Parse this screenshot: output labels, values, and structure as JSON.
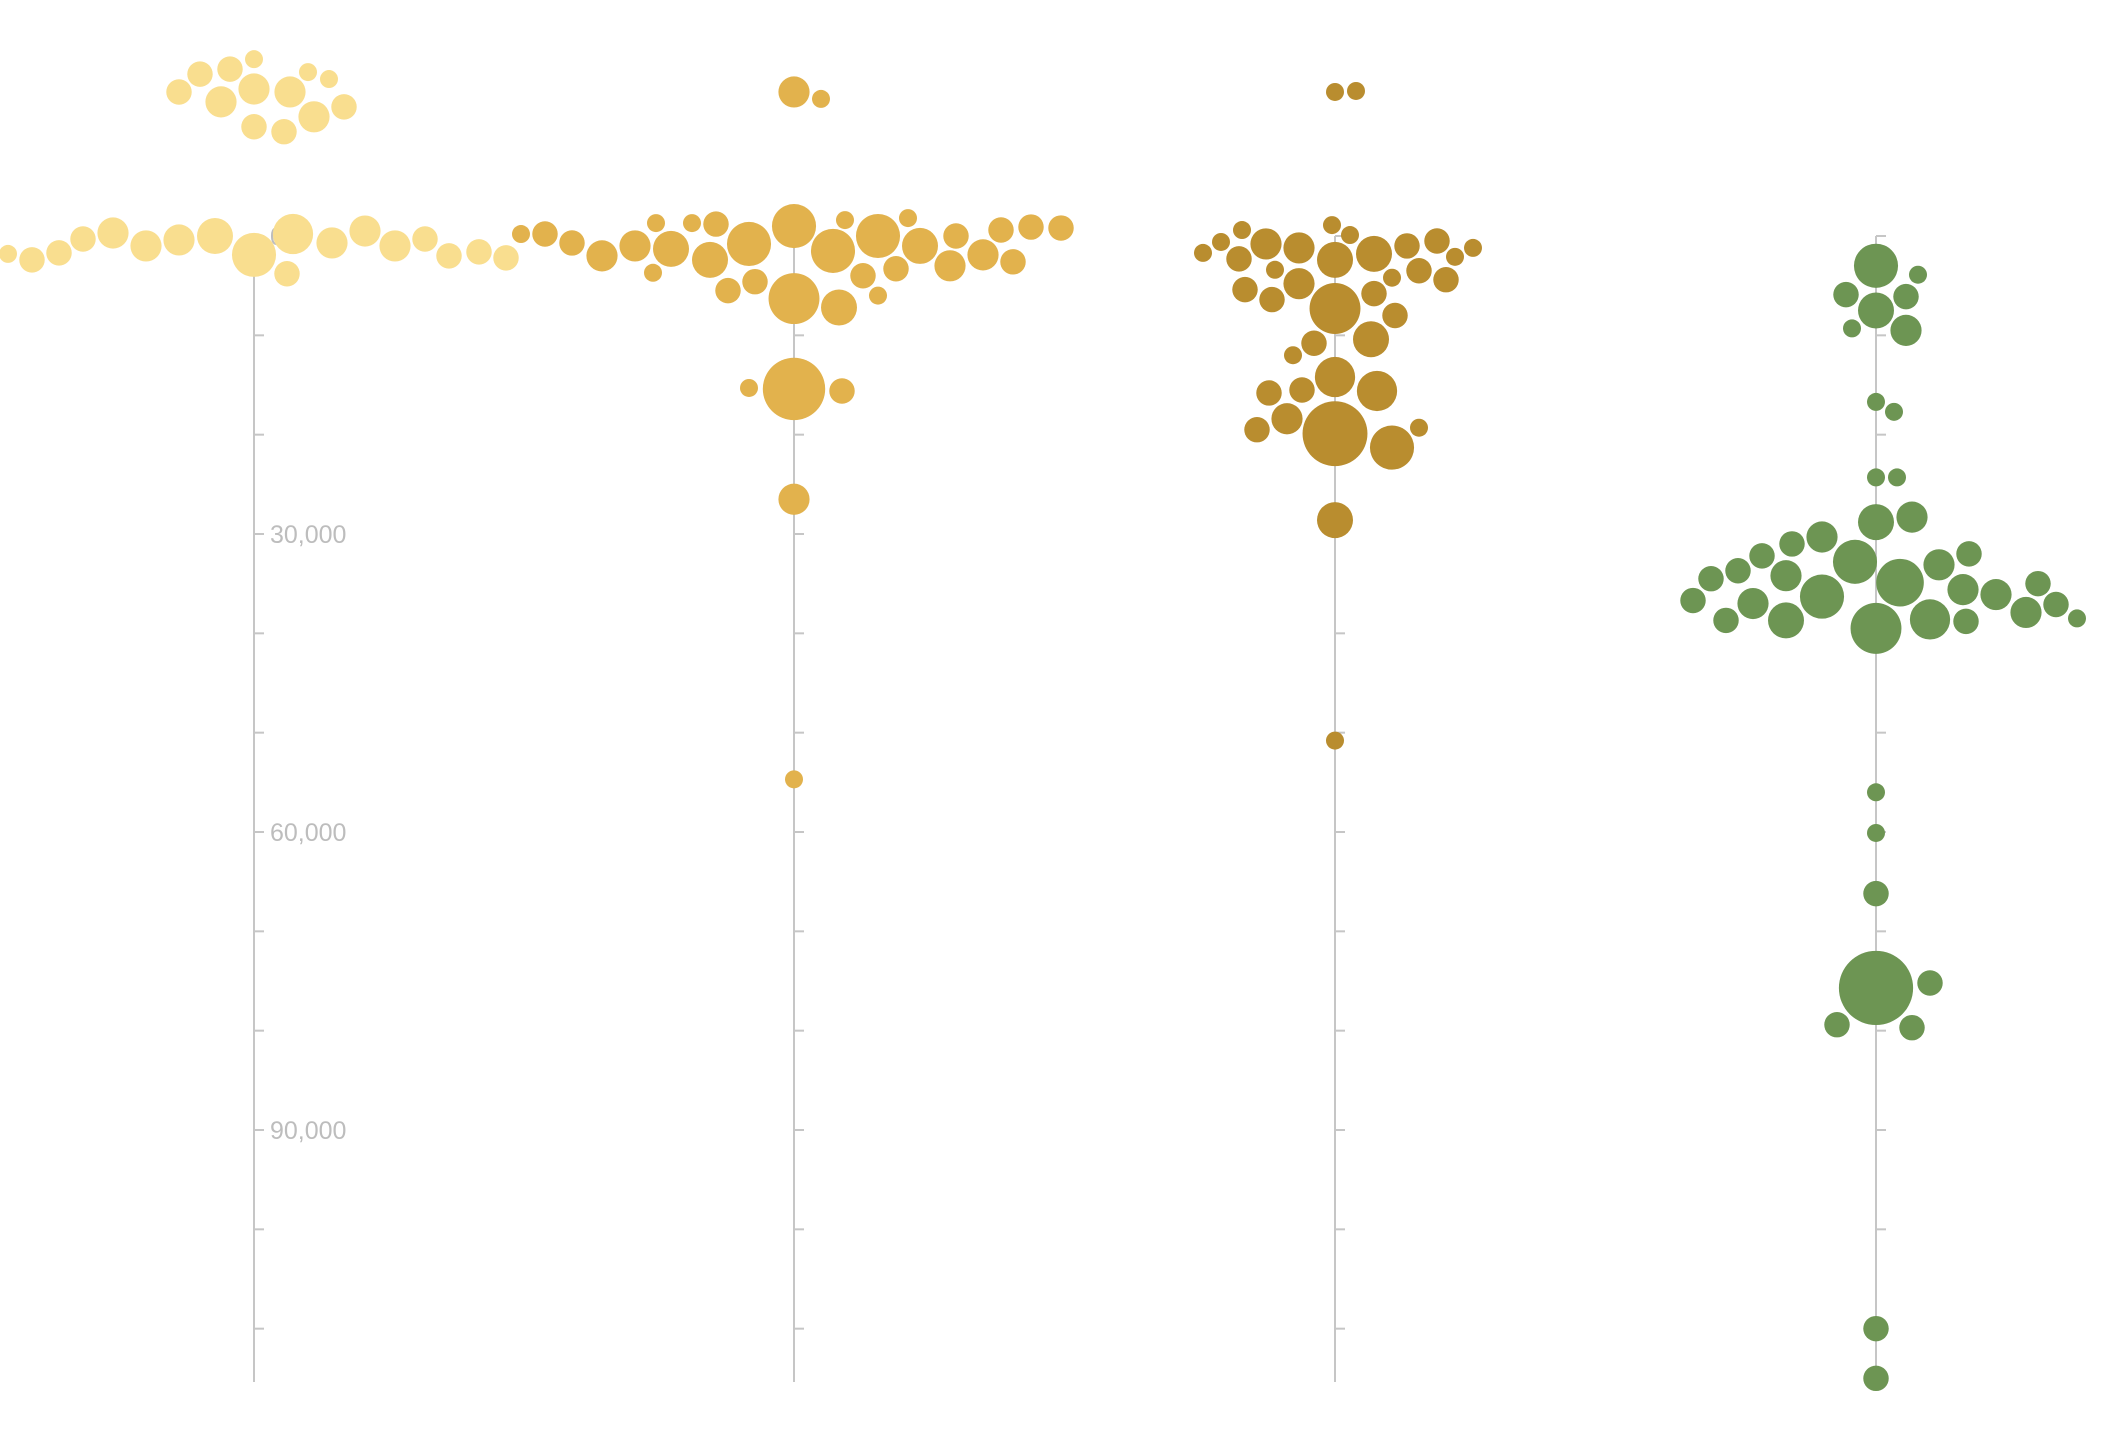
{
  "chart_data": {
    "type": "scatter",
    "title": "",
    "xlabel": "",
    "ylabel": "",
    "y_axis": {
      "min": 0,
      "max": 115000,
      "tick_step": 10000,
      "labels": [
        {
          "value": 0,
          "text": "0"
        },
        {
          "value": 30000,
          "text": "30,000"
        },
        {
          "value": 60000,
          "text": "60,000"
        },
        {
          "value": 90000,
          "text": "90,000"
        }
      ]
    },
    "grid": false,
    "legend": "none",
    "series": [
      {
        "color": "#f9de8f",
        "summary_values": [
          -18000,
          -17000,
          -15500,
          -14500,
          -13500,
          -12000,
          -10500,
          -9000
        ],
        "bubbles": [
          {
            "value": -17800,
            "size": 1
          },
          {
            "value": -16800,
            "size": 2
          },
          {
            "value": -16500,
            "size": 1
          },
          {
            "value": -16300,
            "size": 2
          },
          {
            "value": -15800,
            "size": 1
          },
          {
            "value": -14800,
            "size": 3
          },
          {
            "value": -14500,
            "size": 3
          },
          {
            "value": -14500,
            "size": 2
          },
          {
            "value": -13500,
            "size": 3
          },
          {
            "value": -13000,
            "size": 2
          },
          {
            "value": -12000,
            "size": 3
          },
          {
            "value": -11000,
            "size": 2
          },
          {
            "value": -10500,
            "size": 2
          },
          {
            "value": 300,
            "size": 2
          },
          {
            "value": 300,
            "size": 2
          },
          {
            "value": 400,
            "size": 3
          },
          {
            "value": -200,
            "size": 5
          },
          {
            "value": 700,
            "size": 3
          },
          {
            "value": 0,
            "size": 4
          },
          {
            "value": 2000,
            "size": 2
          },
          {
            "value": 1800,
            "size": 1
          },
          {
            "value": 1700,
            "size": 2
          },
          {
            "value": 2400,
            "size": 2
          },
          {
            "value": 1900,
            "size": 6
          },
          {
            "value": 1000,
            "size": 3
          },
          {
            "value": 1600,
            "size": 2
          },
          {
            "value": -500,
            "size": 3
          },
          {
            "value": 3800,
            "size": 2
          },
          {
            "value": 2200,
            "size": 2
          },
          {
            "value": -300,
            "size": 3
          },
          {
            "value": 1000,
            "size": 3
          }
        ]
      },
      {
        "color": "#e2b24d",
        "bubbles": [
          {
            "value": -14500,
            "size": 3
          },
          {
            "value": -13800,
            "size": 1
          },
          {
            "value": 3000,
            "size": 3
          },
          {
            "value": 2600,
            "size": 2
          },
          {
            "value": 1000,
            "size": 3
          },
          {
            "value": 0,
            "size": 2
          },
          {
            "value": 2400,
            "size": 4
          },
          {
            "value": 1900,
            "size": 3
          },
          {
            "value": 700,
            "size": 2
          },
          {
            "value": 1300,
            "size": 4
          },
          {
            "value": -1600,
            "size": 1
          },
          {
            "value": -1000,
            "size": 6
          },
          {
            "value": -200,
            "size": 1
          },
          {
            "value": 2000,
            "size": 3
          },
          {
            "value": 4000,
            "size": 2
          },
          {
            "value": -1200,
            "size": 2
          },
          {
            "value": -600,
            "size": 2
          },
          {
            "value": -1300,
            "size": 1
          },
          {
            "value": -900,
            "size": 2
          },
          {
            "value": -1800,
            "size": 1
          },
          {
            "value": -1300,
            "size": 1
          },
          {
            "value": -200,
            "size": 2
          },
          {
            "value": 1500,
            "size": 6
          },
          {
            "value": -800,
            "size": 2
          },
          {
            "value": 4600,
            "size": 2
          },
          {
            "value": 3300,
            "size": 2
          },
          {
            "value": 800,
            "size": 6
          },
          {
            "value": 1000,
            "size": 4
          },
          {
            "value": 0,
            "size": 6
          },
          {
            "value": 6000,
            "size": 1
          },
          {
            "value": 3700,
            "size": 1
          },
          {
            "value": 5500,
            "size": 2
          },
          {
            "value": 6300,
            "size": 8
          },
          {
            "value": 7200,
            "size": 4
          },
          {
            "value": 15400,
            "size": 12
          },
          {
            "value": 15300,
            "size": 1
          },
          {
            "value": 15600,
            "size": 2
          },
          {
            "value": 26500,
            "size": 3
          },
          {
            "value": 54700,
            "size": 1
          }
        ]
      },
      {
        "color": "#b98d2f",
        "bubbles": [
          {
            "value": -14500,
            "size": 1
          },
          {
            "value": -14600,
            "size": 1
          },
          {
            "value": 1000,
            "size": 2
          },
          {
            "value": 2400,
            "size": 4
          },
          {
            "value": 2100,
            "size": 1
          },
          {
            "value": 600,
            "size": 1
          },
          {
            "value": -100,
            "size": 1
          },
          {
            "value": 1800,
            "size": 4
          },
          {
            "value": 1200,
            "size": 3
          },
          {
            "value": -1100,
            "size": 1
          },
          {
            "value": 800,
            "size": 3
          },
          {
            "value": -600,
            "size": 1
          },
          {
            "value": 1700,
            "size": 1
          },
          {
            "value": 500,
            "size": 2
          },
          {
            "value": 3500,
            "size": 2
          },
          {
            "value": 2300,
            "size": 2
          },
          {
            "value": 1200,
            "size": 1
          },
          {
            "value": 3400,
            "size": 1
          },
          {
            "value": 4800,
            "size": 3
          },
          {
            "value": 5800,
            "size": 2
          },
          {
            "value": 6400,
            "size": 2
          },
          {
            "value": 5400,
            "size": 2
          },
          {
            "value": 4200,
            "size": 1
          },
          {
            "value": 4400,
            "size": 2
          },
          {
            "value": 7300,
            "size": 8
          },
          {
            "value": 8000,
            "size": 2
          },
          {
            "value": 10400,
            "size": 4
          },
          {
            "value": 10800,
            "size": 2
          },
          {
            "value": 12000,
            "size": 1
          },
          {
            "value": 14200,
            "size": 5
          },
          {
            "value": 15500,
            "size": 2
          },
          {
            "value": 15600,
            "size": 5
          },
          {
            "value": 15800,
            "size": 2
          },
          {
            "value": 18400,
            "size": 3
          },
          {
            "value": 19500,
            "size": 2
          },
          {
            "value": 19300,
            "size": 1
          },
          {
            "value": 19900,
            "size": 13
          },
          {
            "value": 21300,
            "size": 6
          },
          {
            "value": 28600,
            "size": 4
          },
          {
            "value": 50800,
            "size": 1
          }
        ]
      },
      {
        "color": "#6d9553",
        "bubbles": [
          {
            "value": 3000,
            "size": 6
          },
          {
            "value": 3900,
            "size": 1
          },
          {
            "value": 6100,
            "size": 2
          },
          {
            "value": 5900,
            "size": 2
          },
          {
            "value": 7500,
            "size": 4
          },
          {
            "value": 9300,
            "size": 1
          },
          {
            "value": 9500,
            "size": 3
          },
          {
            "value": 16700,
            "size": 1
          },
          {
            "value": 17700,
            "size": 1
          },
          {
            "value": 24300,
            "size": 1
          },
          {
            "value": 24300,
            "size": 1
          },
          {
            "value": 28800,
            "size": 4
          },
          {
            "value": 28300,
            "size": 3
          },
          {
            "value": 30300,
            "size": 3
          },
          {
            "value": 31000,
            "size": 2
          },
          {
            "value": 32000,
            "size": 2
          },
          {
            "value": 32200,
            "size": 2
          },
          {
            "value": 32800,
            "size": 6
          },
          {
            "value": 33100,
            "size": 3
          },
          {
            "value": 33700,
            "size": 2
          },
          {
            "value": 34200,
            "size": 3
          },
          {
            "value": 35000,
            "size": 2
          },
          {
            "value": 34500,
            "size": 2
          },
          {
            "value": 35600,
            "size": 3
          },
          {
            "value": 34900,
            "size": 7
          },
          {
            "value": 36100,
            "size": 3
          },
          {
            "value": 37000,
            "size": 3
          },
          {
            "value": 36700,
            "size": 2
          },
          {
            "value": 37100,
            "size": 2
          },
          {
            "value": 36300,
            "size": 6
          },
          {
            "value": 37900,
            "size": 3
          },
          {
            "value": 38800,
            "size": 2
          },
          {
            "value": 38700,
            "size": 2
          },
          {
            "value": 38700,
            "size": 4
          },
          {
            "value": 38500,
            "size": 1
          },
          {
            "value": 39500,
            "size": 8
          },
          {
            "value": 38600,
            "size": 5
          },
          {
            "value": 56000,
            "size": 1
          },
          {
            "value": 60100,
            "size": 1
          },
          {
            "value": 66200,
            "size": 2
          },
          {
            "value": 75200,
            "size": 2
          },
          {
            "value": 75700,
            "size": 17
          },
          {
            "value": 79700,
            "size": 2
          },
          {
            "value": 79400,
            "size": 2
          },
          {
            "value": 110000,
            "size": 2
          },
          {
            "value": 115000,
            "size": 2
          }
        ]
      }
    ]
  }
}
